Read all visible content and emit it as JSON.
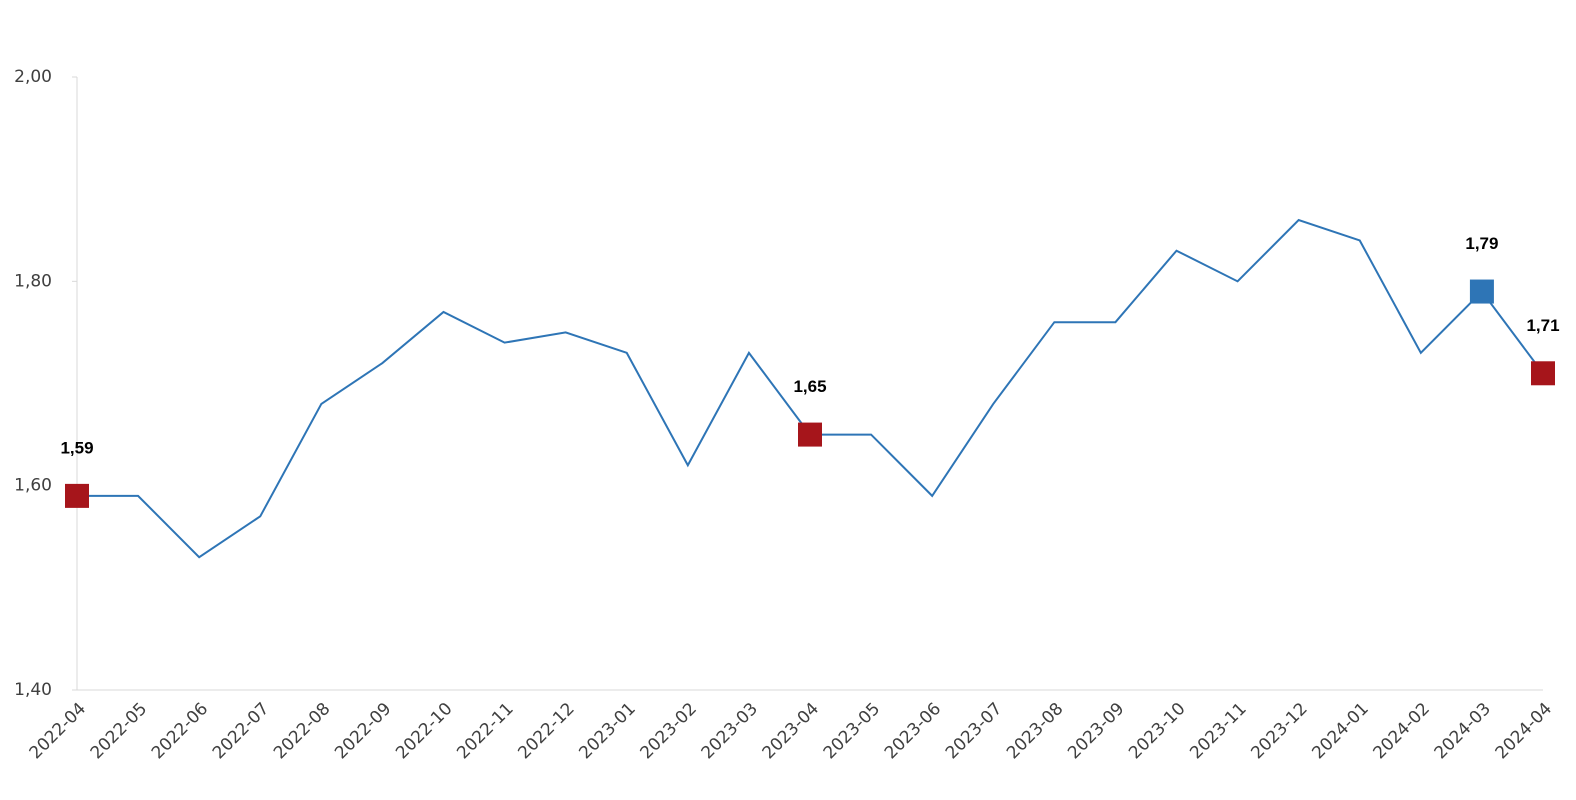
{
  "chart_data": {
    "type": "line",
    "x": [
      "2022-04",
      "2022-05",
      "2022-06",
      "2022-07",
      "2022-08",
      "2022-09",
      "2022-10",
      "2022-11",
      "2022-12",
      "2023-01",
      "2023-02",
      "2023-03",
      "2023-04",
      "2023-05",
      "2023-06",
      "2023-07",
      "2023-08",
      "2023-09",
      "2023-10",
      "2023-11",
      "2023-12",
      "2024-01",
      "2024-02",
      "2024-03",
      "2024-04"
    ],
    "series": [
      {
        "color": "#2e75b6",
        "values": [
          1.59,
          1.59,
          1.53,
          1.57,
          1.68,
          1.72,
          1.77,
          1.74,
          1.75,
          1.73,
          1.62,
          1.73,
          1.65,
          1.65,
          1.59,
          1.68,
          1.76,
          1.76,
          1.83,
          1.8,
          1.86,
          1.84,
          1.73,
          1.79,
          1.71
        ],
        "value_labels": [
          "1,59",
          null,
          null,
          null,
          null,
          null,
          null,
          null,
          null,
          null,
          null,
          null,
          "1,65",
          null,
          null,
          null,
          null,
          null,
          null,
          null,
          null,
          null,
          null,
          "1,79",
          "1,71"
        ],
        "marker_colors": [
          "#a6151b",
          null,
          null,
          null,
          null,
          null,
          null,
          null,
          null,
          null,
          null,
          null,
          "#a6151b",
          null,
          null,
          null,
          null,
          null,
          null,
          null,
          null,
          null,
          null,
          "#2e75b6",
          "#a6151b"
        ]
      }
    ],
    "ylim": [
      1.4,
      2.0
    ],
    "yticks": [
      {
        "value": 1.4,
        "label": "1,40"
      },
      {
        "value": 1.6,
        "label": "1,60"
      },
      {
        "value": 1.8,
        "label": "1,80"
      },
      {
        "value": 2.0,
        "label": "2,00"
      }
    ]
  }
}
